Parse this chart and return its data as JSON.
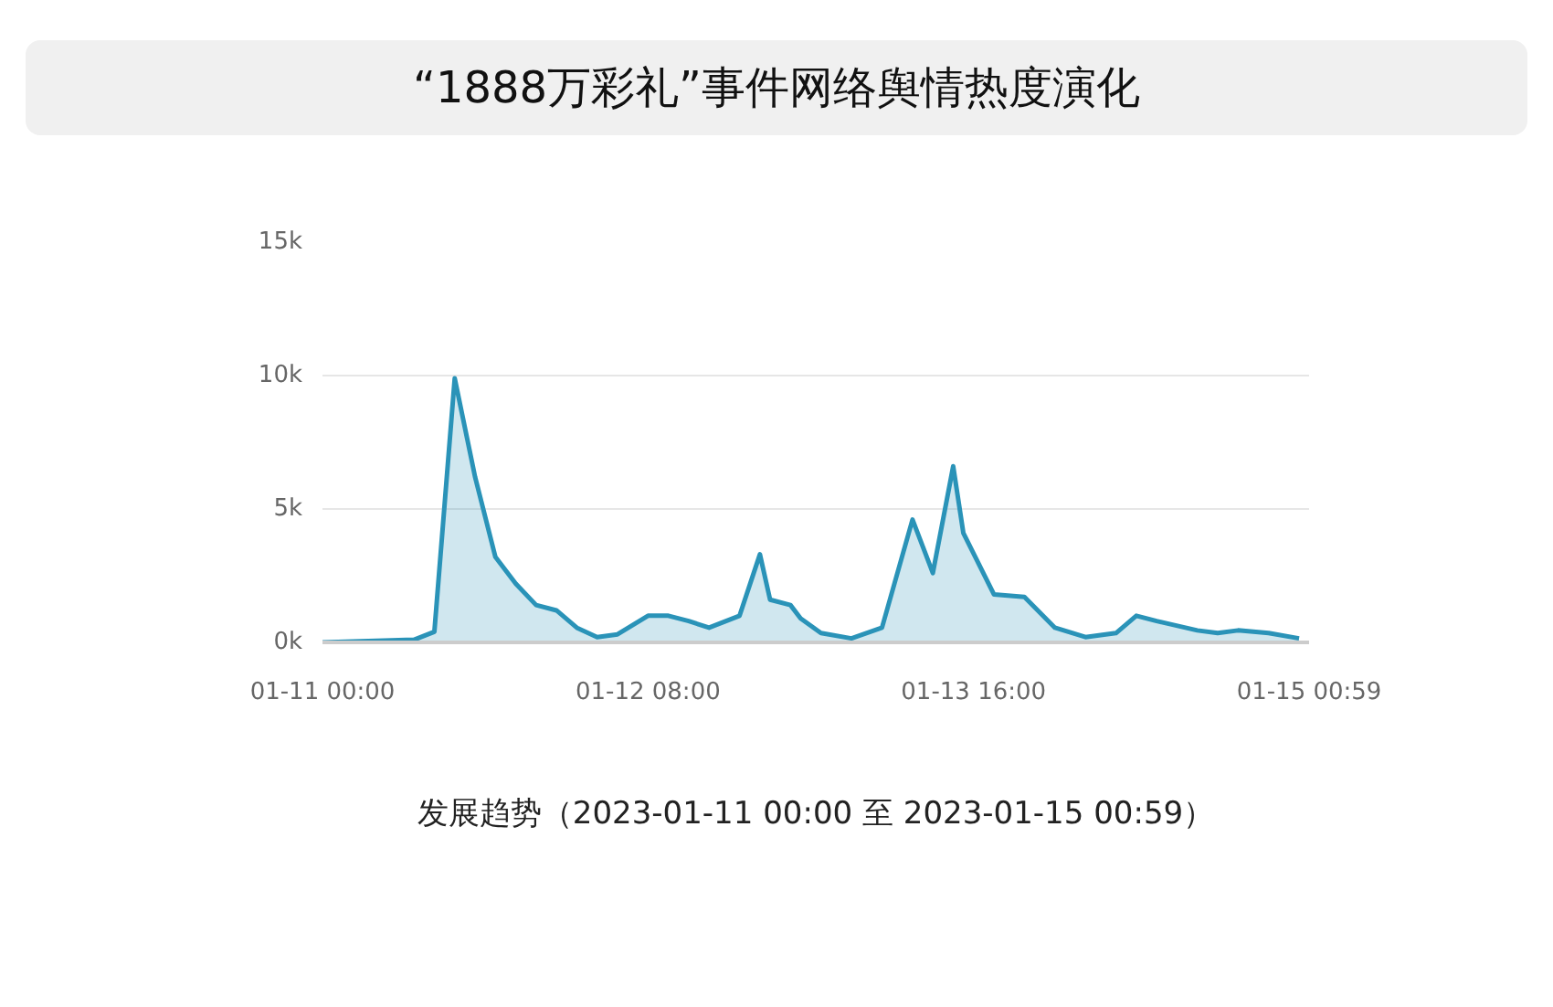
{
  "chart_data": {
    "type": "area",
    "title": "“1888万彩礼”事件网络舆情热度演化",
    "xlabel": "发展趋势（2023-01-11 00:00 至 2023-01-15 00:59）",
    "x": [
      "2023-01-11T00:00",
      "2023-01-11T09:00",
      "2023-01-11T11:00",
      "2023-01-11T13:00",
      "2023-01-11T15:00",
      "2023-01-11T17:00",
      "2023-01-11T19:00",
      "2023-01-11T21:00",
      "2023-01-11T23:00",
      "2023-01-12T01:00",
      "2023-01-12T03:00",
      "2023-01-12T05:00",
      "2023-01-12T08:00",
      "2023-01-12T10:00",
      "2023-01-12T12:00",
      "2023-01-12T14:00",
      "2023-01-12T17:00",
      "2023-01-12T19:00",
      "2023-01-12T20:00",
      "2023-01-12T22:00",
      "2023-01-12T23:00",
      "2023-01-13T01:00",
      "2023-01-13T04:00",
      "2023-01-13T07:00",
      "2023-01-13T10:00",
      "2023-01-13T12:00",
      "2023-01-13T14:00",
      "2023-01-13T15:00",
      "2023-01-13T18:00",
      "2023-01-13T21:00",
      "2023-01-14T00:00",
      "2023-01-14T03:00",
      "2023-01-14T06:00",
      "2023-01-14T08:00",
      "2023-01-14T10:00",
      "2023-01-14T14:00",
      "2023-01-14T16:00",
      "2023-01-14T18:00",
      "2023-01-14T21:00",
      "2023-01-15T00:00"
    ],
    "series": [
      {
        "color": "#2a93b8",
        "values": [
          0,
          100,
          400,
          9900,
          6200,
          3200,
          2200,
          1400,
          1200,
          550,
          200,
          300,
          1000,
          1000,
          800,
          550,
          1000,
          3300,
          1600,
          1400,
          900,
          350,
          150,
          550,
          4600,
          2600,
          6600,
          4100,
          1800,
          1700,
          550,
          200,
          350,
          1000,
          800,
          450,
          350,
          450,
          350,
          150
        ]
      }
    ],
    "xlim": [
      "2023-01-11T00:00",
      "2023-01-15T00:59"
    ],
    "xticks": [
      {
        "value": "2023-01-11T00:00",
        "label": "01-11 00:00"
      },
      {
        "value": "2023-01-12T08:00",
        "label": "01-12 08:00"
      },
      {
        "value": "2023-01-13T16:00",
        "label": "01-13 16:00"
      },
      {
        "value": "2023-01-15T00:59",
        "label": "01-15 00:59"
      }
    ],
    "ylim": [
      0,
      15000
    ],
    "yticks": [
      {
        "value": 0,
        "label": "0k"
      },
      {
        "value": 5000,
        "label": "5k"
      },
      {
        "value": 10000,
        "label": "10k"
      },
      {
        "value": 15000,
        "label": "15k"
      }
    ],
    "grid": "y"
  }
}
